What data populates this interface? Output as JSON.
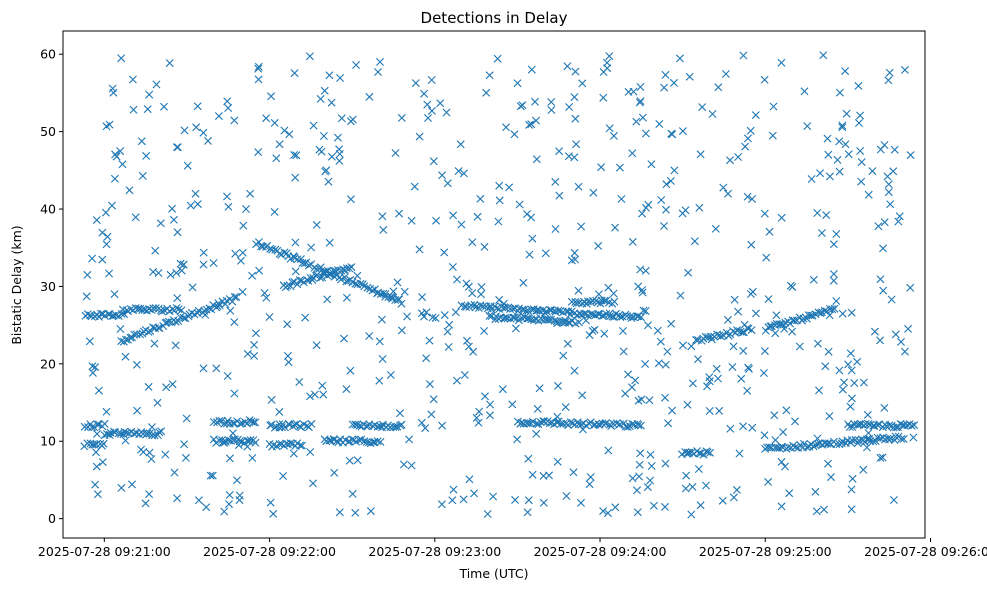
{
  "chart_data": {
    "type": "scatter",
    "title": "Detections in Delay",
    "xlabel": "Time (UTC)",
    "ylabel": "Bistatic Delay (km)",
    "xlim": [
      "2025-07-28 09:20:45",
      "2025-07-28 09:25:58"
    ],
    "ylim": [
      -2.5,
      63
    ],
    "x_ticks": [
      "2025-07-28 09:21:00",
      "2025-07-28 09:22:00",
      "2025-07-28 09:23:00",
      "2025-07-28 09:24:00",
      "2025-07-28 09:25:00",
      "2025-07-28 09:26:00"
    ],
    "y_ticks": [
      0,
      10,
      20,
      30,
      40,
      50,
      60
    ],
    "grid": false,
    "marker": "x",
    "color": "#1f77b4",
    "time_range": [
      "2025-07-28 09:20:53",
      "2025-07-28 09:25:54"
    ],
    "tracks": [
      {
        "start": [
          "2025-07-28 09:20:53",
          26.3
        ],
        "end": [
          "2025-07-28 09:21:07",
          26.3
        ]
      },
      {
        "start": [
          "2025-07-28 09:21:07",
          27.0
        ],
        "end": [
          "2025-07-28 09:21:28",
          27.0
        ]
      },
      {
        "start": [
          "2025-07-28 09:21:06",
          23.0
        ],
        "end": [
          "2025-07-28 09:21:48",
          28.5
        ]
      },
      {
        "start": [
          "2025-07-28 09:21:56",
          35.5
        ],
        "end": [
          "2025-07-28 09:22:48",
          28.0
        ]
      },
      {
        "start": [
          "2025-07-28 09:22:05",
          30.0
        ],
        "end": [
          "2025-07-28 09:22:30",
          32.5
        ]
      },
      {
        "start": [
          "2025-07-28 09:23:10",
          27.5
        ],
        "end": [
          "2025-07-28 09:24:15",
          26.0
        ]
      },
      {
        "start": [
          "2025-07-28 09:23:20",
          26.0
        ],
        "end": [
          "2025-07-28 09:23:50",
          25.5
        ]
      },
      {
        "start": [
          "2025-07-28 09:23:50",
          28.0
        ],
        "end": [
          "2025-07-28 09:24:05",
          28.0
        ]
      },
      {
        "start": [
          "2025-07-28 09:25:00",
          24.5
        ],
        "end": [
          "2025-07-28 09:25:25",
          27.0
        ]
      },
      {
        "start": [
          "2025-07-28 09:24:35",
          23.0
        ],
        "end": [
          "2025-07-28 09:24:55",
          24.5
        ]
      },
      {
        "start": [
          "2025-07-28 09:20:53",
          12.0
        ],
        "end": [
          "2025-07-28 09:21:00",
          12.0
        ]
      },
      {
        "start": [
          "2025-07-28 09:20:53",
          9.5
        ],
        "end": [
          "2025-07-28 09:21:00",
          9.5
        ]
      },
      {
        "start": [
          "2025-07-28 09:21:00",
          11.0
        ],
        "end": [
          "2025-07-28 09:21:20",
          11.0
        ]
      },
      {
        "start": [
          "2025-07-28 09:21:40",
          12.5
        ],
        "end": [
          "2025-07-28 09:21:55",
          12.5
        ]
      },
      {
        "start": [
          "2025-07-28 09:21:40",
          10.0
        ],
        "end": [
          "2025-07-28 09:21:55",
          10.0
        ]
      },
      {
        "start": [
          "2025-07-28 09:22:00",
          12.0
        ],
        "end": [
          "2025-07-28 09:22:15",
          12.0
        ]
      },
      {
        "start": [
          "2025-07-28 09:22:00",
          9.5
        ],
        "end": [
          "2025-07-28 09:22:12",
          9.5
        ]
      },
      {
        "start": [
          "2025-07-28 09:22:20",
          10.0
        ],
        "end": [
          "2025-07-28 09:22:40",
          10.0
        ]
      },
      {
        "start": [
          "2025-07-28 09:22:30",
          12.0
        ],
        "end": [
          "2025-07-28 09:22:48",
          12.0
        ]
      },
      {
        "start": [
          "2025-07-28 09:23:30",
          12.5
        ],
        "end": [
          "2025-07-28 09:24:15",
          12.0
        ]
      },
      {
        "start": [
          "2025-07-28 09:24:30",
          8.5
        ],
        "end": [
          "2025-07-28 09:24:40",
          8.5
        ]
      },
      {
        "start": [
          "2025-07-28 09:25:00",
          9.0
        ],
        "end": [
          "2025-07-28 09:25:50",
          10.5
        ]
      },
      {
        "start": [
          "2025-07-28 09:25:30",
          12.0
        ],
        "end": [
          "2025-07-28 09:25:54",
          12.0
        ]
      }
    ],
    "background_points": 700,
    "background_y_range": [
      0.5,
      60
    ]
  }
}
